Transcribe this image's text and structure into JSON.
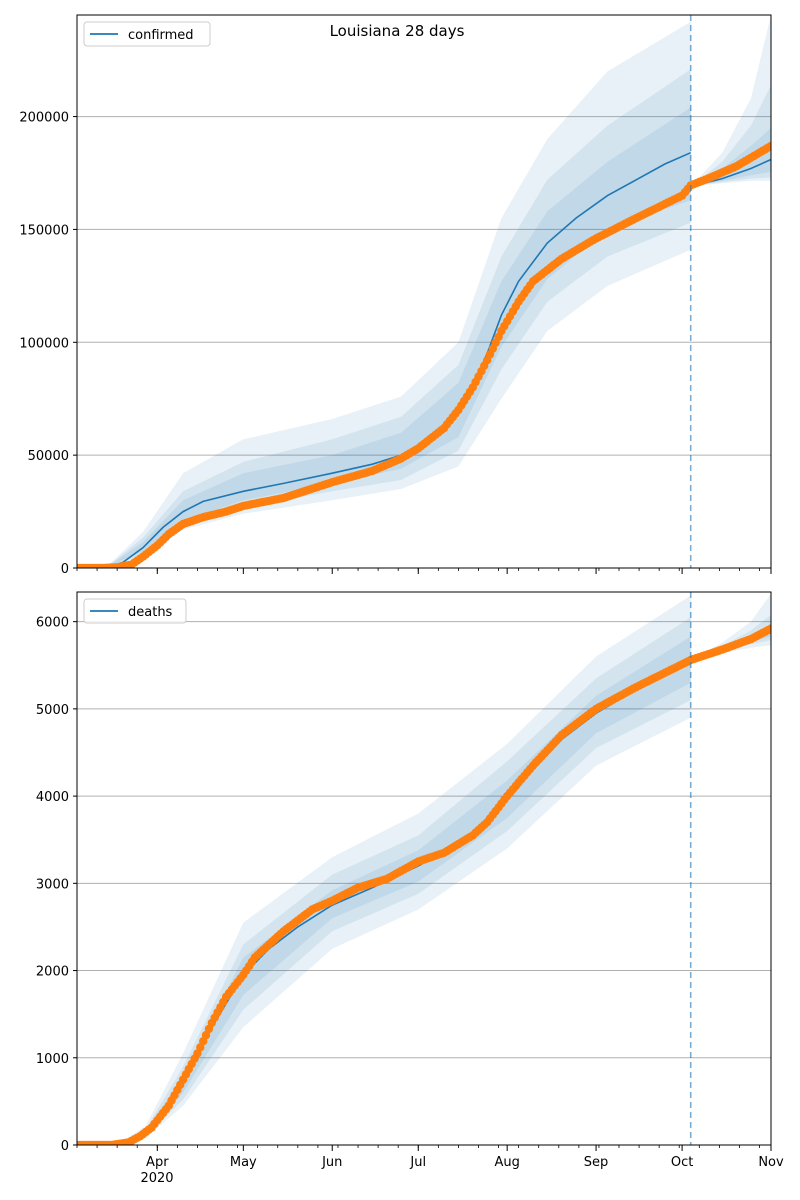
{
  "chart_data": {
    "title": "Louisiana 28 days",
    "x_tick_labels": [
      "Apr",
      "May",
      "Jun",
      "Jul",
      "Aug",
      "Sep",
      "Oct",
      "Nov"
    ],
    "x_tick_dates": [
      "2020-04-01",
      "2020-05-01",
      "2020-06-01",
      "2020-07-01",
      "2020-08-01",
      "2020-09-01",
      "2020-10-01",
      "2020-11-01"
    ],
    "x_year_label": "2020",
    "xlim": [
      "2020-03-04",
      "2020-11-01"
    ],
    "forecast_start": "2020-10-04",
    "colors": {
      "model": "#1f77b4",
      "observed": "#ff7f0e",
      "band": "#1f77b4",
      "grid": "#b0b0b0",
      "divider": "#1f77b4"
    },
    "charts": [
      {
        "type": "line",
        "legend": "confirmed",
        "legend_position": "top-left",
        "grid": "horizontal",
        "ylim": [
          0,
          245000
        ],
        "y_ticks": [
          0,
          50000,
          100000,
          150000,
          200000
        ],
        "y_tick_labels": [
          "0",
          "50000",
          "100000",
          "150000",
          "200000"
        ],
        "model_fit": [
          [
            "2020-03-04",
            0
          ],
          [
            "2020-03-14",
            0
          ],
          [
            "2020-03-20",
            2500
          ],
          [
            "2020-03-27",
            9000
          ],
          [
            "2020-04-03",
            18000
          ],
          [
            "2020-04-10",
            25000
          ],
          [
            "2020-04-17",
            29500
          ],
          [
            "2020-05-01",
            34000
          ],
          [
            "2020-05-15",
            37500
          ],
          [
            "2020-06-01",
            42000
          ],
          [
            "2020-06-15",
            46000
          ],
          [
            "2020-06-25",
            50000
          ],
          [
            "2020-07-05",
            57000
          ],
          [
            "2020-07-15",
            69000
          ],
          [
            "2020-07-20",
            80000
          ],
          [
            "2020-07-25",
            95000
          ],
          [
            "2020-07-30",
            112000
          ],
          [
            "2020-08-05",
            127000
          ],
          [
            "2020-08-15",
            144000
          ],
          [
            "2020-08-25",
            155000
          ],
          [
            "2020-09-05",
            165000
          ],
          [
            "2020-09-15",
            172000
          ],
          [
            "2020-09-25",
            179000
          ],
          [
            "2020-10-04",
            184000
          ]
        ],
        "forecast": [
          [
            "2020-10-04",
            169000
          ],
          [
            "2020-10-15",
            172500
          ],
          [
            "2020-10-25",
            177000
          ],
          [
            "2020-11-01",
            181000
          ]
        ],
        "observed": [
          [
            "2020-03-04",
            0
          ],
          [
            "2020-03-12",
            0
          ],
          [
            "2020-03-18",
            300
          ],
          [
            "2020-03-23",
            1500
          ],
          [
            "2020-03-27",
            5000
          ],
          [
            "2020-04-01",
            10000
          ],
          [
            "2020-04-05",
            15000
          ],
          [
            "2020-04-10",
            19500
          ],
          [
            "2020-04-17",
            22500
          ],
          [
            "2020-04-25",
            25000
          ],
          [
            "2020-05-01",
            27500
          ],
          [
            "2020-05-15",
            31000
          ],
          [
            "2020-06-01",
            38000
          ],
          [
            "2020-06-15",
            43000
          ],
          [
            "2020-06-25",
            48500
          ],
          [
            "2020-07-01",
            53000
          ],
          [
            "2020-07-10",
            62000
          ],
          [
            "2020-07-15",
            70000
          ],
          [
            "2020-07-20",
            80000
          ],
          [
            "2020-07-25",
            92000
          ],
          [
            "2020-07-30",
            105000
          ],
          [
            "2020-08-05",
            118000
          ],
          [
            "2020-08-10",
            127000
          ],
          [
            "2020-08-20",
            137000
          ],
          [
            "2020-09-01",
            146000
          ],
          [
            "2020-09-15",
            155000
          ],
          [
            "2020-10-01",
            165000
          ],
          [
            "2020-10-04",
            169500
          ],
          [
            "2020-10-10",
            172500
          ],
          [
            "2020-10-20",
            178000
          ],
          [
            "2020-11-01",
            187000
          ]
        ],
        "band_dates": [
          "2020-03-04",
          "2020-03-14",
          "2020-03-27",
          "2020-04-10",
          "2020-05-01",
          "2020-06-01",
          "2020-06-25",
          "2020-07-15",
          "2020-07-30",
          "2020-08-15",
          "2020-09-05",
          "2020-10-04"
        ],
        "band_levels": [
          {
            "opacity": 0.1,
            "lower": [
              0,
              0,
              5000,
              17000,
              24000,
              30000,
              35000,
              45000,
              75000,
              105000,
              125000,
              141000
            ],
            "upper": [
              0,
              0,
              16000,
              42000,
              57000,
              66000,
              76000,
              100000,
              155000,
              190000,
              220000,
              242000
            ]
          },
          {
            "opacity": 0.1,
            "lower": [
              0,
              0,
              6000,
              19000,
              27000,
              34000,
              39000,
              52000,
              88000,
              118000,
              138000,
              153000
            ],
            "upper": [
              0,
              0,
              13500,
              34000,
              47000,
              57000,
              67000,
              90000,
              138000,
              172000,
              196000,
              221000
            ]
          },
          {
            "opacity": 0.1,
            "lower": [
              0,
              0,
              7500,
              21000,
              30000,
              37500,
              44000,
              58000,
              98000,
              128000,
              150000,
              163000
            ],
            "upper": [
              0,
              0,
              11500,
              30000,
              42000,
              50000,
              60000,
              82000,
              127000,
              158000,
              180000,
              204000
            ]
          }
        ],
        "forecast_band_dates": [
          "2020-10-04",
          "2020-10-15",
          "2020-10-25",
          "2020-11-01"
        ],
        "forecast_band_levels": [
          {
            "opacity": 0.1,
            "lower": [
              169000,
              170500,
              171500,
              171500
            ],
            "upper": [
              169000,
              184000,
              208000,
              245000
            ]
          },
          {
            "opacity": 0.1,
            "lower": [
              169000,
              171000,
              172500,
              173000
            ],
            "upper": [
              169000,
              180000,
              196000,
              214000
            ]
          },
          {
            "opacity": 0.1,
            "lower": [
              169000,
              171500,
              174000,
              175500
            ],
            "upper": [
              169000,
              177000,
              187000,
              195000
            ]
          }
        ]
      },
      {
        "type": "line",
        "legend": "deaths",
        "legend_position": "top-left",
        "grid": "horizontal",
        "ylim": [
          0,
          6340
        ],
        "y_ticks": [
          0,
          1000,
          2000,
          3000,
          4000,
          5000,
          6000
        ],
        "y_tick_labels": [
          "0",
          "1000",
          "2000",
          "3000",
          "4000",
          "5000",
          "6000"
        ],
        "model_fit": [
          [
            "2020-03-04",
            0
          ],
          [
            "2020-03-18",
            0
          ],
          [
            "2020-03-25",
            70
          ],
          [
            "2020-04-01",
            250
          ],
          [
            "2020-04-10",
            700
          ],
          [
            "2020-04-20",
            1350
          ],
          [
            "2020-05-01",
            1950
          ],
          [
            "2020-05-10",
            2250
          ],
          [
            "2020-05-20",
            2500
          ],
          [
            "2020-06-01",
            2750
          ],
          [
            "2020-06-15",
            2950
          ],
          [
            "2020-07-01",
            3200
          ],
          [
            "2020-07-15",
            3450
          ],
          [
            "2020-07-25",
            3700
          ],
          [
            "2020-08-01",
            3950
          ],
          [
            "2020-08-10",
            4300
          ],
          [
            "2020-08-20",
            4650
          ],
          [
            "2020-09-01",
            4950
          ],
          [
            "2020-09-15",
            5220
          ],
          [
            "2020-10-04",
            5560
          ]
        ],
        "forecast": [
          [
            "2020-10-04",
            5560
          ],
          [
            "2020-10-15",
            5680
          ],
          [
            "2020-10-25",
            5790
          ],
          [
            "2020-11-01",
            5880
          ]
        ],
        "observed": [
          [
            "2020-03-04",
            0
          ],
          [
            "2020-03-16",
            0
          ],
          [
            "2020-03-22",
            30
          ],
          [
            "2020-03-26",
            100
          ],
          [
            "2020-03-30",
            200
          ],
          [
            "2020-04-05",
            450
          ],
          [
            "2020-04-10",
            750
          ],
          [
            "2020-04-15",
            1050
          ],
          [
            "2020-04-20",
            1400
          ],
          [
            "2020-04-25",
            1700
          ],
          [
            "2020-05-01",
            1950
          ],
          [
            "2020-05-05",
            2150
          ],
          [
            "2020-05-15",
            2450
          ],
          [
            "2020-05-25",
            2700
          ],
          [
            "2020-06-01",
            2800
          ],
          [
            "2020-06-10",
            2950
          ],
          [
            "2020-06-20",
            3050
          ],
          [
            "2020-07-01",
            3250
          ],
          [
            "2020-07-10",
            3350
          ],
          [
            "2020-07-20",
            3550
          ],
          [
            "2020-07-25",
            3700
          ],
          [
            "2020-08-01",
            4000
          ],
          [
            "2020-08-10",
            4350
          ],
          [
            "2020-08-20",
            4700
          ],
          [
            "2020-09-01",
            5000
          ],
          [
            "2020-09-15",
            5250
          ],
          [
            "2020-10-04",
            5560
          ],
          [
            "2020-10-15",
            5680
          ],
          [
            "2020-10-25",
            5800
          ],
          [
            "2020-11-01",
            5920
          ]
        ],
        "band_dates": [
          "2020-03-04",
          "2020-03-18",
          "2020-03-28",
          "2020-04-10",
          "2020-05-01",
          "2020-06-01",
          "2020-07-01",
          "2020-08-01",
          "2020-09-01",
          "2020-10-04"
        ],
        "band_levels": [
          {
            "opacity": 0.1,
            "lower": [
              0,
              0,
              80,
              450,
              1350,
              2250,
              2700,
              3400,
              4350,
              4900
            ],
            "upper": [
              0,
              0,
              220,
              1050,
              2550,
              3300,
              3800,
              4600,
              5600,
              6300
            ]
          },
          {
            "opacity": 0.1,
            "lower": [
              0,
              0,
              100,
              520,
              1550,
              2450,
              2880,
              3600,
              4550,
              5100
            ],
            "upper": [
              0,
              0,
              180,
              900,
              2300,
              3100,
              3550,
              4400,
              5350,
              6050
            ]
          },
          {
            "opacity": 0.1,
            "lower": [
              0,
              0,
              120,
              600,
              1720,
              2600,
              3020,
              3750,
              4720,
              5300
            ],
            "upper": [
              0,
              0,
              160,
              790,
              2150,
              2920,
              3380,
              4180,
              5150,
              5830
            ]
          }
        ],
        "forecast_band_dates": [
          "2020-10-04",
          "2020-10-15",
          "2020-10-25",
          "2020-11-01"
        ],
        "forecast_band_levels": [
          {
            "opacity": 0.1,
            "lower": [
              5560,
              5640,
              5700,
              5730
            ],
            "upper": [
              5560,
              5760,
              6000,
              6320
            ]
          },
          {
            "opacity": 0.1,
            "lower": [
              5560,
              5660,
              5740,
              5790
            ],
            "upper": [
              5560,
              5720,
              5900,
              6080
            ]
          },
          {
            "opacity": 0.1,
            "lower": [
              5560,
              5670,
              5770,
              5830
            ],
            "upper": [
              5560,
              5700,
              5840,
              5960
            ]
          }
        ]
      }
    ]
  }
}
